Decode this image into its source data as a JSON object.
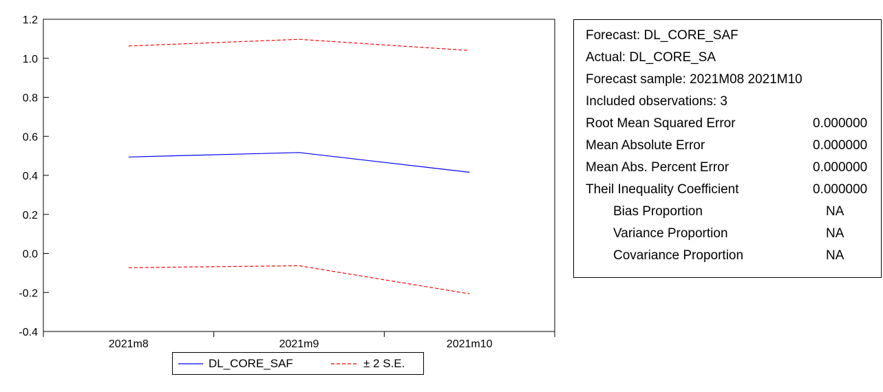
{
  "chart_data": {
    "type": "line",
    "categories": [
      "2021m8",
      "2021m9",
      "2021m10"
    ],
    "series": [
      {
        "name": "DL_CORE_SAF",
        "values": [
          0.494,
          0.517,
          0.416
        ],
        "color": "#0000ff",
        "style": "solid"
      },
      {
        "name": "± 2 S.E.",
        "values": [
          1.063,
          1.097,
          1.04
        ],
        "color": "#ff0000",
        "style": "dashed"
      },
      {
        "name": "± 2 S.E.",
        "values": [
          -0.073,
          -0.063,
          -0.207
        ],
        "color": "#ff0000",
        "style": "dashed"
      }
    ],
    "ylim": [
      -0.4,
      1.2
    ],
    "yticks": [
      "-0.4",
      "-0.2",
      "0.0",
      "0.2",
      "0.4",
      "0.6",
      "0.8",
      "1.0",
      "1.2"
    ],
    "xlabel": "",
    "ylabel": "",
    "grid": false,
    "legend_position": "bottom"
  },
  "legend": {
    "forecast_label": "DL_CORE_SAF",
    "se_label": "± 2 S.E."
  },
  "stats": {
    "forecast": "Forecast: DL_CORE_SAF",
    "actual": "Actual: DL_CORE_SA",
    "sample": "Forecast sample: 2021M08 2021M10",
    "observations": "Included observations: 3",
    "rows": [
      {
        "label": "Root Mean Squared Error",
        "value": "0.000000"
      },
      {
        "label": "Mean Absolute Error",
        "value": "0.000000"
      },
      {
        "label": "Mean Abs. Percent Error",
        "value": "0.000000"
      },
      {
        "label": "Theil Inequality Coefficient",
        "value": "0.000000"
      }
    ],
    "proportions": [
      {
        "label": "Bias Proportion",
        "value": "NA"
      },
      {
        "label": "Variance Proportion",
        "value": "NA"
      },
      {
        "label": "Covariance Proportion",
        "value": "NA"
      }
    ]
  }
}
